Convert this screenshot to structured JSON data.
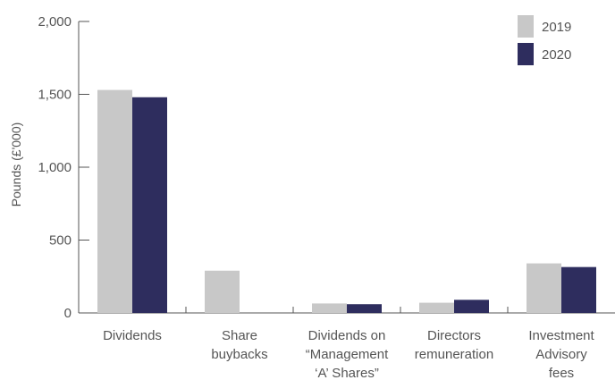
{
  "chart_data": {
    "type": "bar",
    "title": "",
    "xlabel": "",
    "ylabel": "Pounds (£'000)",
    "ylim": [
      0,
      2000
    ],
    "yticks": [
      "0",
      "500",
      "1,000",
      "1,500",
      "2,000"
    ],
    "ytick_values": [
      0,
      500,
      1000,
      1500,
      2000
    ],
    "categories": [
      [
        "Dividends"
      ],
      [
        "Share",
        "buybacks"
      ],
      [
        "Dividends on",
        "“Management",
        "‘A’ Shares”"
      ],
      [
        "Directors",
        "remuneration"
      ],
      [
        "Investment",
        "Advisory",
        "fees"
      ]
    ],
    "series": [
      {
        "name": "2019",
        "color": "#c8c8c8",
        "values": [
          1530,
          290,
          65,
          70,
          340
        ]
      },
      {
        "name": "2020",
        "color": "#2e2d5e",
        "values": [
          1480,
          0,
          60,
          90,
          315
        ]
      }
    ],
    "legend_position": "top-right",
    "grid": false
  }
}
